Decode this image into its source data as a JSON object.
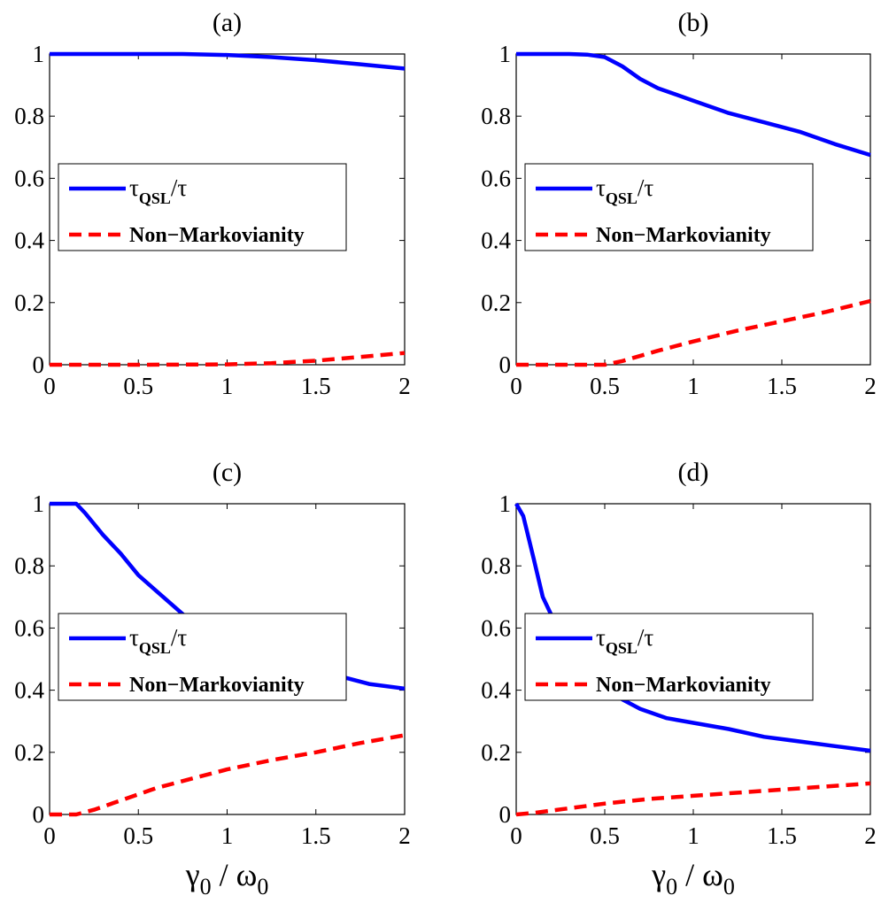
{
  "chart_data": [
    {
      "type": "line",
      "title": "(a)",
      "xlim": [
        0,
        2
      ],
      "ylim": [
        0,
        1
      ],
      "xticks": [
        "0",
        "0.5",
        "1",
        "1.5",
        "2"
      ],
      "yticks": [
        "0",
        "0.2",
        "0.4",
        "0.6",
        "0.8",
        "1"
      ],
      "xlabel": "",
      "ylabel": "",
      "legend": {
        "placement": "center-left",
        "entries": [
          "τ_QSL/τ",
          "Non−Markovianity"
        ]
      },
      "series": [
        {
          "name": "τ_QSL/τ",
          "color": "#0000ff",
          "style": "solid",
          "points": [
            [
              0,
              1
            ],
            [
              0.25,
              1
            ],
            [
              0.5,
              1
            ],
            [
              0.75,
              1
            ],
            [
              1,
              0.997
            ],
            [
              1.25,
              0.99
            ],
            [
              1.5,
              0.98
            ],
            [
              1.75,
              0.967
            ],
            [
              2,
              0.953
            ]
          ]
        },
        {
          "name": "Non−Markovianity",
          "color": "#ff0000",
          "style": "dashed",
          "points": [
            [
              0,
              0
            ],
            [
              0.5,
              0
            ],
            [
              1,
              0.001
            ],
            [
              1.25,
              0.005
            ],
            [
              1.5,
              0.013
            ],
            [
              1.75,
              0.025
            ],
            [
              2,
              0.038
            ]
          ]
        }
      ]
    },
    {
      "type": "line",
      "title": "(b)",
      "xlim": [
        0,
        2
      ],
      "ylim": [
        0,
        1
      ],
      "xticks": [
        "0",
        "0.5",
        "1",
        "1.5",
        "2"
      ],
      "yticks": [
        "0",
        "0.2",
        "0.4",
        "0.6",
        "0.8",
        "1"
      ],
      "xlabel": "",
      "ylabel": "",
      "legend": {
        "placement": "center-left",
        "entries": [
          "τ_QSL/τ",
          "Non−Markovianity"
        ]
      },
      "series": [
        {
          "name": "τ_QSL/τ",
          "color": "#0000ff",
          "style": "solid",
          "points": [
            [
              0,
              1
            ],
            [
              0.3,
              1
            ],
            [
              0.4,
              0.998
            ],
            [
              0.5,
              0.99
            ],
            [
              0.6,
              0.96
            ],
            [
              0.7,
              0.92
            ],
            [
              0.8,
              0.89
            ],
            [
              1,
              0.85
            ],
            [
              1.2,
              0.81
            ],
            [
              1.4,
              0.78
            ],
            [
              1.6,
              0.75
            ],
            [
              1.8,
              0.71
            ],
            [
              2,
              0.675
            ]
          ]
        },
        {
          "name": "Non−Markovianity",
          "color": "#ff0000",
          "style": "dashed",
          "points": [
            [
              0,
              0
            ],
            [
              0.5,
              0
            ],
            [
              0.6,
              0.012
            ],
            [
              0.8,
              0.045
            ],
            [
              1,
              0.075
            ],
            [
              1.25,
              0.11
            ],
            [
              1.5,
              0.14
            ],
            [
              1.75,
              0.17
            ],
            [
              2,
              0.205
            ]
          ]
        }
      ]
    },
    {
      "type": "line",
      "title": "(c)",
      "xlim": [
        0,
        2
      ],
      "ylim": [
        0,
        1
      ],
      "xticks": [
        "0",
        "0.5",
        "1",
        "1.5",
        "2"
      ],
      "yticks": [
        "0",
        "0.2",
        "0.4",
        "0.6",
        "0.8",
        "1"
      ],
      "xlabel": "γ_0 / ω_0",
      "ylabel": "",
      "legend": {
        "placement": "center-left",
        "entries": [
          "τ_QSL/τ",
          "Non−Markovianity"
        ]
      },
      "series": [
        {
          "name": "τ_QSL/τ",
          "color": "#0000ff",
          "style": "solid",
          "points": [
            [
              0,
              1
            ],
            [
              0.15,
              1
            ],
            [
              0.2,
              0.97
            ],
            [
              0.3,
              0.9
            ],
            [
              0.4,
              0.84
            ],
            [
              0.5,
              0.77
            ],
            [
              0.6,
              0.72
            ],
            [
              0.7,
              0.67
            ],
            [
              0.8,
              0.62
            ],
            [
              0.9,
              0.58
            ],
            [
              1,
              0.55
            ],
            [
              1.2,
              0.51
            ],
            [
              1.4,
              0.47
            ],
            [
              1.6,
              0.45
            ],
            [
              1.8,
              0.42
            ],
            [
              2,
              0.405
            ]
          ]
        },
        {
          "name": "Non−Markovianity",
          "color": "#ff0000",
          "style": "dashed",
          "points": [
            [
              0,
              0
            ],
            [
              0.15,
              0
            ],
            [
              0.25,
              0.015
            ],
            [
              0.4,
              0.045
            ],
            [
              0.6,
              0.085
            ],
            [
              0.8,
              0.115
            ],
            [
              1,
              0.145
            ],
            [
              1.25,
              0.175
            ],
            [
              1.5,
              0.2
            ],
            [
              1.75,
              0.23
            ],
            [
              2,
              0.255
            ]
          ]
        }
      ]
    },
    {
      "type": "line",
      "title": "(d)",
      "xlim": [
        0,
        2
      ],
      "ylim": [
        0,
        1
      ],
      "xticks": [
        "0",
        "0.5",
        "1",
        "1.5",
        "2"
      ],
      "yticks": [
        "0",
        "0.2",
        "0.4",
        "0.6",
        "0.8",
        "1"
      ],
      "xlabel": "γ_0 / ω_0",
      "ylabel": "",
      "legend": {
        "placement": "center-left",
        "entries": [
          "τ_QSL/τ",
          "Non−Markovianity"
        ]
      },
      "series": [
        {
          "name": "τ_QSL/τ",
          "color": "#0000ff",
          "style": "solid",
          "points": [
            [
              0,
              1
            ],
            [
              0.04,
              0.96
            ],
            [
              0.1,
              0.82
            ],
            [
              0.15,
              0.7
            ],
            [
              0.2,
              0.64
            ],
            [
              0.25,
              0.58
            ],
            [
              0.3,
              0.52
            ],
            [
              0.4,
              0.45
            ],
            [
              0.5,
              0.41
            ],
            [
              0.6,
              0.37
            ],
            [
              0.7,
              0.34
            ],
            [
              0.85,
              0.31
            ],
            [
              1,
              0.295
            ],
            [
              1.2,
              0.275
            ],
            [
              1.4,
              0.25
            ],
            [
              1.6,
              0.235
            ],
            [
              1.8,
              0.22
            ],
            [
              2,
              0.205
            ]
          ]
        },
        {
          "name": "Non−Markovianity",
          "color": "#ff0000",
          "style": "dashed",
          "points": [
            [
              0,
              0
            ],
            [
              0.1,
              0.005
            ],
            [
              0.3,
              0.02
            ],
            [
              0.5,
              0.035
            ],
            [
              0.75,
              0.05
            ],
            [
              1,
              0.06
            ],
            [
              1.25,
              0.07
            ],
            [
              1.5,
              0.08
            ],
            [
              1.75,
              0.09
            ],
            [
              2,
              0.1
            ]
          ]
        }
      ]
    }
  ]
}
